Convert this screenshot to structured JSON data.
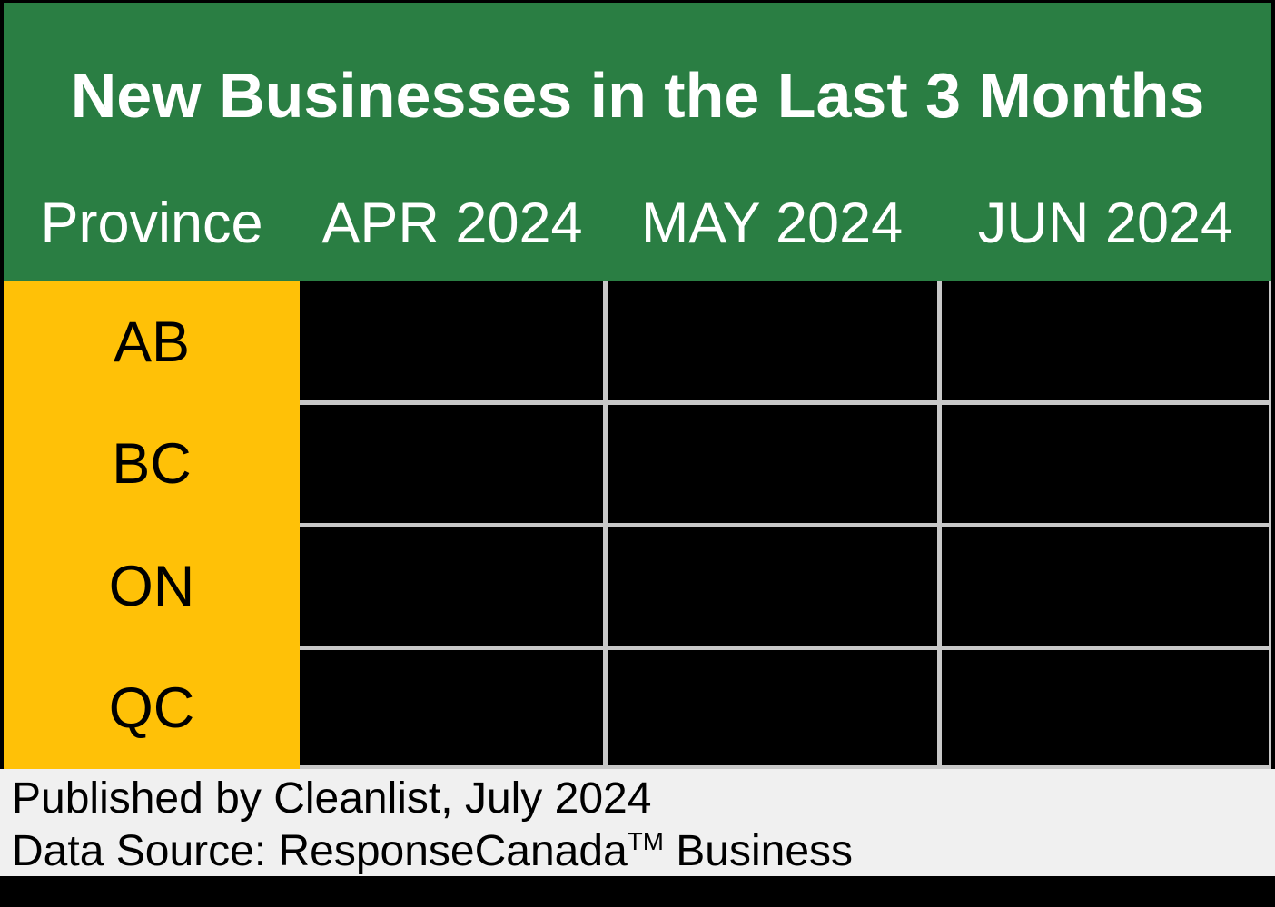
{
  "title": "New Businesses in the Last 3 Months",
  "columns": [
    "Province",
    "APR 2024",
    "MAY 2024",
    "JUN 2024"
  ],
  "rows": [
    {
      "province": "AB",
      "values": [
        "",
        "",
        ""
      ]
    },
    {
      "province": "BC",
      "values": [
        "",
        "",
        ""
      ]
    },
    {
      "province": "ON",
      "values": [
        "",
        "",
        ""
      ]
    },
    {
      "province": "QC",
      "values": [
        "",
        "",
        ""
      ]
    }
  ],
  "footer": {
    "published": "Published by Cleanlist, July 2024",
    "source_prefix": "Data Source: ResponseCanada",
    "source_tm": "TM",
    "source_suffix": " Business"
  },
  "colors": {
    "header_green": "#2A7E43",
    "province_yellow": "#FFC107",
    "cell_black": "#000000",
    "grid_gray": "#C8C8C8",
    "footer_gray": "#F0F0F0",
    "outer_border_black": "#000000",
    "header_text": "#FFFFFF",
    "body_text": "#000000"
  },
  "chart_data": {
    "type": "table",
    "title": "New Businesses in the Last 3 Months",
    "columns": [
      "Province",
      "APR 2024",
      "MAY 2024",
      "JUN 2024"
    ],
    "row_labels": [
      "AB",
      "BC",
      "ON",
      "QC"
    ],
    "values_hidden": true,
    "values": [
      [
        null,
        null,
        null
      ],
      [
        null,
        null,
        null
      ],
      [
        null,
        null,
        null
      ],
      [
        null,
        null,
        null
      ]
    ]
  }
}
